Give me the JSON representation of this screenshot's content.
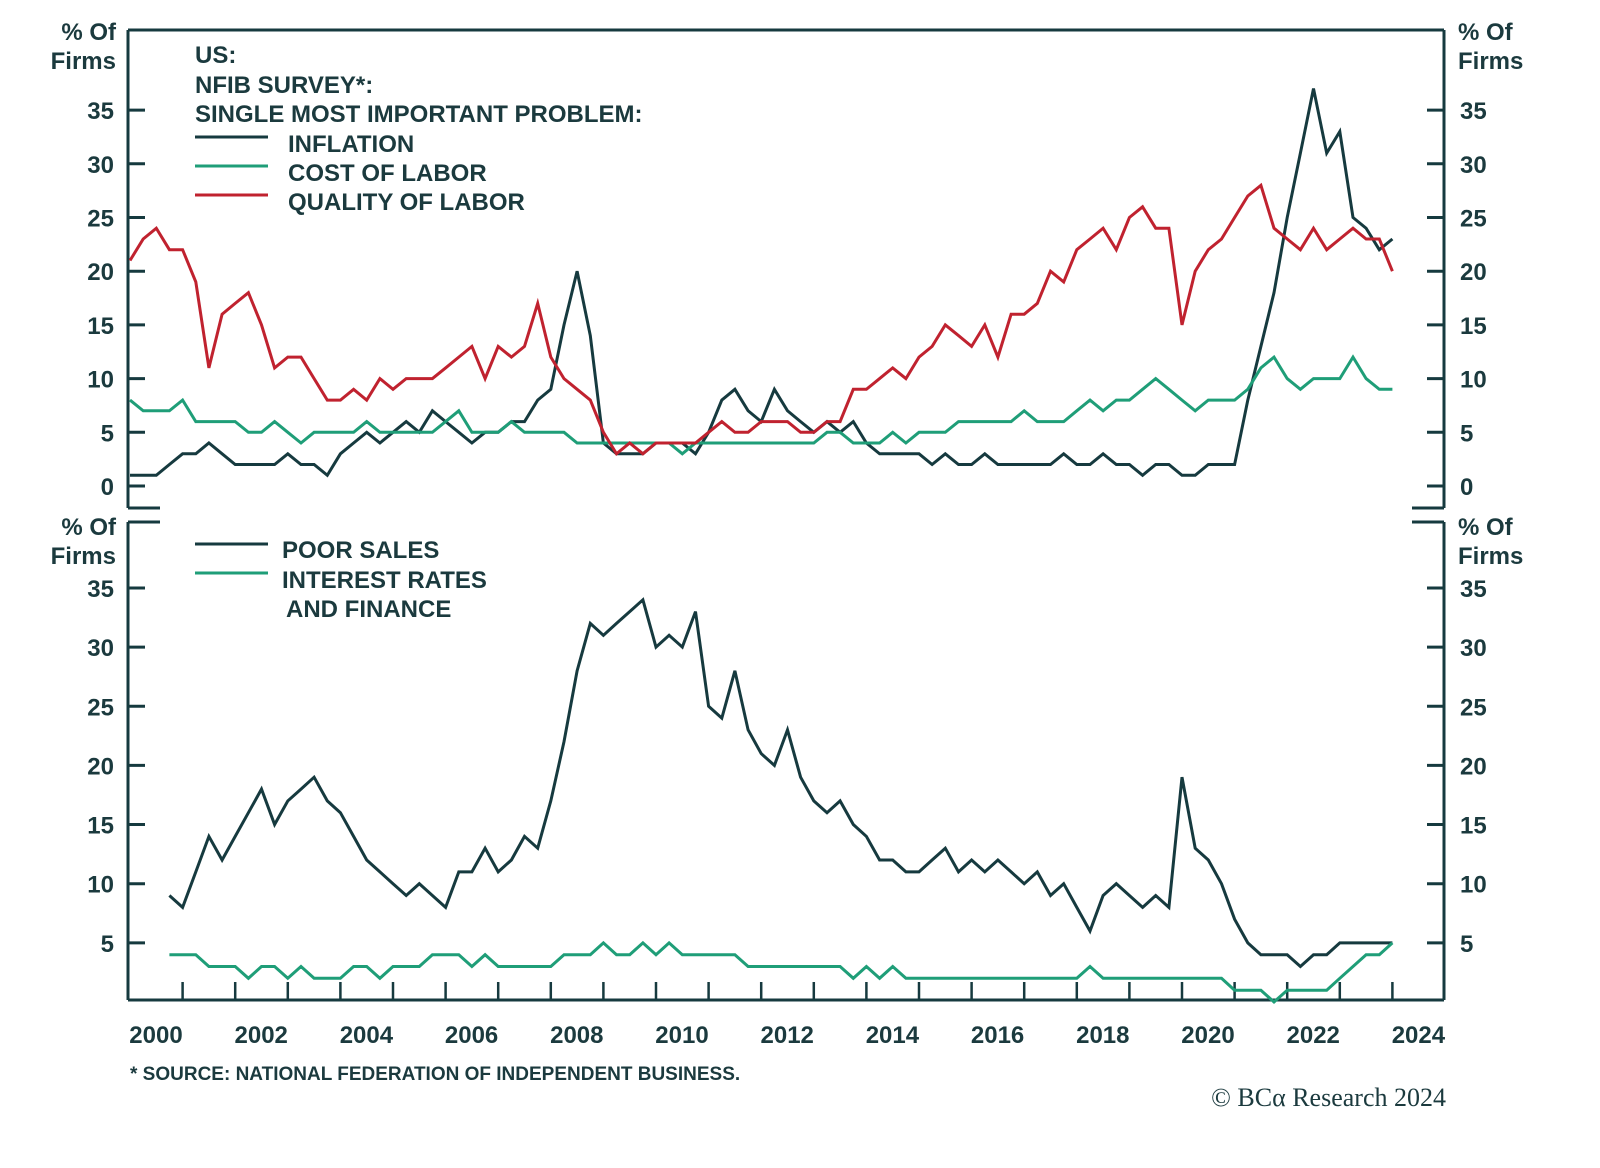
{
  "colors": {
    "inflation": "#163a3f",
    "cost_of_labor": "#1f9e78",
    "quality_of_labor": "#c0222f",
    "poor_sales": "#163a3f",
    "interest_rates": "#1f9e78",
    "axis": "#163a3f"
  },
  "chart_data": [
    {
      "type": "line",
      "title_lines": [
        "US:",
        "NFIB SURVEY*:",
        "SINGLE MOST IMPORTANT PROBLEM:"
      ],
      "ylabel_left": [
        "% Of",
        "Firms"
      ],
      "ylabel_right": [
        "% Of",
        "Firms"
      ],
      "ylim": [
        -2,
        42
      ],
      "xlim": [
        2000,
        2025
      ],
      "yticks": [
        0,
        5,
        10,
        15,
        20,
        25,
        30,
        35
      ],
      "legend_placement": "top-left",
      "grid": false,
      "x_start": 2000.0,
      "x_step_years": 0.25,
      "series": [
        {
          "name": "INFLATION",
          "key": "inflation",
          "values": [
            1,
            1,
            1,
            2,
            3,
            3,
            4,
            3,
            2,
            2,
            2,
            2,
            3,
            2,
            2,
            1,
            3,
            4,
            5,
            4,
            5,
            6,
            5,
            7,
            6,
            5,
            4,
            5,
            5,
            6,
            6,
            8,
            9,
            15,
            20,
            14,
            4,
            3,
            3,
            3,
            4,
            4,
            4,
            3,
            5,
            8,
            9,
            7,
            6,
            9,
            7,
            6,
            5,
            6,
            5,
            6,
            4,
            3,
            3,
            3,
            3,
            2,
            3,
            2,
            2,
            3,
            2,
            2,
            2,
            2,
            2,
            3,
            2,
            2,
            3,
            2,
            2,
            1,
            2,
            2,
            1,
            1,
            2,
            2,
            2,
            8,
            13,
            18,
            25,
            31,
            37,
            31,
            33,
            25,
            24,
            22,
            23
          ]
        },
        {
          "name": "COST OF LABOR",
          "key": "cost_of_labor",
          "values": [
            8,
            7,
            7,
            7,
            8,
            6,
            6,
            6,
            6,
            5,
            5,
            6,
            5,
            4,
            5,
            5,
            5,
            5,
            6,
            5,
            5,
            5,
            5,
            5,
            6,
            7,
            5,
            5,
            5,
            6,
            5,
            5,
            5,
            5,
            4,
            4,
            4,
            4,
            4,
            4,
            4,
            4,
            3,
            4,
            4,
            4,
            4,
            4,
            4,
            4,
            4,
            4,
            4,
            5,
            5,
            4,
            4,
            4,
            5,
            4,
            5,
            5,
            5,
            6,
            6,
            6,
            6,
            6,
            7,
            6,
            6,
            6,
            7,
            8,
            7,
            8,
            8,
            9,
            10,
            9,
            8,
            7,
            8,
            8,
            8,
            9,
            11,
            12,
            10,
            9,
            10,
            10,
            10,
            12,
            10,
            9,
            9
          ]
        },
        {
          "name": "QUALITY OF LABOR",
          "key": "quality_of_labor",
          "values": [
            21,
            23,
            24,
            22,
            22,
            19,
            11,
            16,
            17,
            18,
            15,
            11,
            12,
            12,
            10,
            8,
            8,
            9,
            8,
            10,
            9,
            10,
            10,
            10,
            11,
            12,
            13,
            10,
            13,
            12,
            13,
            17,
            12,
            10,
            9,
            8,
            5,
            3,
            4,
            3,
            4,
            4,
            4,
            4,
            5,
            6,
            5,
            5,
            6,
            6,
            6,
            5,
            5,
            6,
            6,
            9,
            9,
            10,
            11,
            10,
            12,
            13,
            15,
            14,
            13,
            15,
            12,
            16,
            16,
            17,
            20,
            19,
            22,
            23,
            24,
            22,
            25,
            26,
            24,
            24,
            15,
            20,
            22,
            23,
            25,
            27,
            28,
            24,
            23,
            22,
            24,
            22,
            23,
            24,
            23,
            23,
            20
          ]
        }
      ]
    },
    {
      "type": "line",
      "ylabel_left": [
        "% Of",
        "Firms"
      ],
      "ylabel_right": [
        "% Of",
        "Firms"
      ],
      "ylim": [
        0,
        40.5
      ],
      "xlim": [
        2000,
        2025
      ],
      "yticks": [
        5,
        10,
        15,
        20,
        25,
        30,
        35
      ],
      "xticks": [
        2000,
        2002,
        2004,
        2006,
        2008,
        2010,
        2012,
        2014,
        2016,
        2018,
        2020,
        2022,
        2024
      ],
      "legend_placement": "top-left",
      "grid": false,
      "x_start": 2000.75,
      "x_step_years": 0.25,
      "series": [
        {
          "name": "POOR SALES",
          "key": "poor_sales",
          "values": [
            9,
            8,
            11,
            14,
            12,
            14,
            16,
            18,
            15,
            17,
            18,
            19,
            17,
            16,
            14,
            12,
            11,
            10,
            9,
            10,
            9,
            8,
            11,
            11,
            13,
            11,
            12,
            14,
            13,
            17,
            22,
            28,
            32,
            31,
            32,
            33,
            34,
            30,
            31,
            30,
            33,
            25,
            24,
            28,
            23,
            21,
            20,
            23,
            19,
            17,
            16,
            17,
            15,
            14,
            12,
            12,
            11,
            11,
            12,
            13,
            11,
            12,
            11,
            12,
            11,
            10,
            11,
            9,
            10,
            8,
            6,
            9,
            10,
            9,
            8,
            9,
            8,
            19,
            13,
            12,
            10,
            7,
            5,
            4,
            4,
            4,
            3,
            4,
            4,
            5,
            5,
            5,
            5,
            5
          ]
        },
        {
          "name_lines": [
            "INTEREST RATES",
            "AND FINANCE"
          ],
          "name": "INTEREST RATES AND FINANCE",
          "key": "interest_rates",
          "values": [
            4,
            4,
            4,
            3,
            3,
            3,
            2,
            3,
            3,
            2,
            3,
            2,
            2,
            2,
            3,
            3,
            2,
            3,
            3,
            3,
            4,
            4,
            4,
            3,
            4,
            3,
            3,
            3,
            3,
            3,
            4,
            4,
            4,
            5,
            4,
            4,
            5,
            4,
            5,
            4,
            4,
            4,
            4,
            4,
            3,
            3,
            3,
            3,
            3,
            3,
            3,
            3,
            2,
            3,
            2,
            3,
            2,
            2,
            2,
            2,
            2,
            2,
            2,
            2,
            2,
            2,
            2,
            2,
            2,
            2,
            3,
            2,
            2,
            2,
            2,
            2,
            2,
            2,
            2,
            2,
            2,
            1,
            1,
            1,
            0,
            1,
            1,
            1,
            1,
            2,
            3,
            4,
            4,
            5
          ]
        }
      ]
    }
  ],
  "footnote": "* SOURCE: NATIONAL FEDERATION OF INDEPENDENT BUSINESS.",
  "copyright": "© BCα Research 2024"
}
